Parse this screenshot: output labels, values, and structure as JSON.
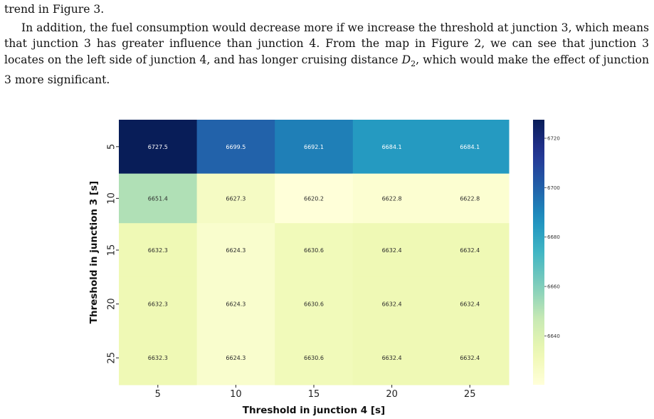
{
  "text": {
    "line_intro": "trend in Figure 3.",
    "paragraph_main": "In addition, the fuel consumption would decrease more if we increase the threshold at junction 3, which means that junction 3 has greater influence than junction 4. From the map in Figure 2, we can see that junction 3 locates on the left side of junction 4, and has longer cruising distance",
    "paragraph_var": "D",
    "paragraph_sub": "2",
    "paragraph_tail": ", which would make the effect of junction 3 more significant."
  },
  "chart_data": {
    "type": "heatmap",
    "x_categories": [
      "5",
      "10",
      "15",
      "20",
      "25"
    ],
    "y_categories": [
      "5",
      "10",
      "15",
      "20",
      "25"
    ],
    "values": [
      [
        6727.5,
        6699.5,
        6692.1,
        6684.1,
        6684.1
      ],
      [
        6651.4,
        6627.3,
        6620.2,
        6622.8,
        6622.8
      ],
      [
        6632.3,
        6624.3,
        6630.6,
        6632.4,
        6632.4
      ],
      [
        6632.3,
        6624.3,
        6630.6,
        6632.4,
        6632.4
      ],
      [
        6632.3,
        6624.3,
        6630.6,
        6632.4,
        6632.4
      ]
    ],
    "value_labels": [
      [
        "6727.5",
        "6699.5",
        "6692.1",
        "6684.1",
        "6684.1"
      ],
      [
        "6651.4",
        "6627.3",
        "6620.2",
        "6622.8",
        "6622.8"
      ],
      [
        "6632.3",
        "6624.3",
        "6630.6",
        "6632.4",
        "6632.4"
      ],
      [
        "6632.3",
        "6624.3",
        "6630.6",
        "6632.4",
        "6632.4"
      ],
      [
        "6632.3",
        "6624.3",
        "6630.6",
        "6632.4",
        "6632.4"
      ]
    ],
    "xlabel": "Threshold in junction 4  [s]",
    "ylabel": "Threshold in junction 3  [s]",
    "colormap": "YlGnBu",
    "value_range": [
      6620.2,
      6727.5
    ],
    "colorbar_ticks": [
      6720,
      6700,
      6680,
      6660,
      6640
    ],
    "colorbar_tick_labels": [
      "6720",
      "6700",
      "6680",
      "6660",
      "6640"
    ],
    "row_height_weights": [
      1,
      0.92,
      1,
      1,
      1
    ]
  }
}
